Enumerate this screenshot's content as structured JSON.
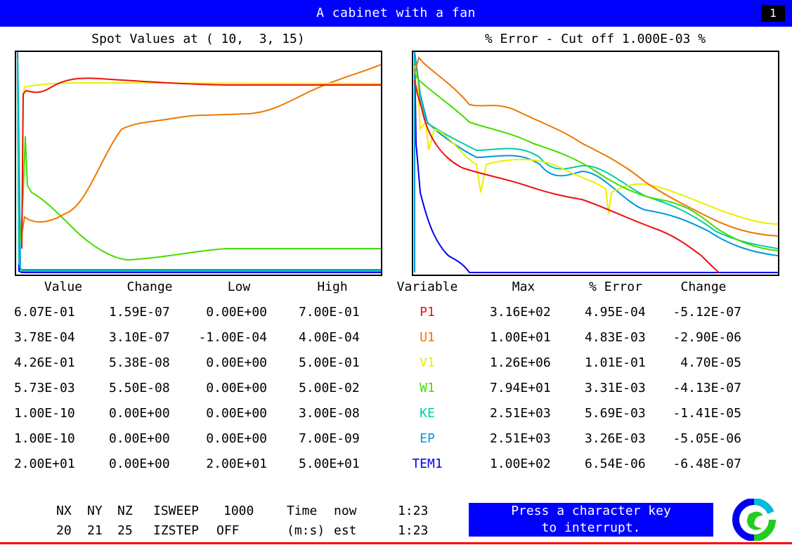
{
  "window": {
    "title": "A cabinet with a fan",
    "counter": "1"
  },
  "left_plot": {
    "title": "Spot Values at ( 10,  3, 15)"
  },
  "right_plot": {
    "title": "% Error - Cut off 1.000E-03 %"
  },
  "colors": {
    "P1": "#ee1010",
    "U1": "#ee7700",
    "V1": "#eeee00",
    "W1": "#44dd00",
    "KE": "#00ccaa",
    "EP": "#0099dd",
    "TEM1": "#0000ee"
  },
  "table": {
    "headers": {
      "value": "Value",
      "change": "Change",
      "low": "Low",
      "high": "High",
      "variable": "Variable",
      "max": "Max",
      "error": "% Error",
      "change2": "Change"
    },
    "rows": [
      {
        "value": "6.07E-01",
        "change": "1.59E-07",
        "low": "0.00E+00",
        "high": "7.00E-01",
        "variable": "P1",
        "max": "3.16E+02",
        "error": "4.95E-04",
        "change2": "-5.12E-07"
      },
      {
        "value": "3.78E-04",
        "change": "3.10E-07",
        "low": "-1.00E-04",
        "high": "4.00E-04",
        "variable": "U1",
        "max": "1.00E+01",
        "error": "4.83E-03",
        "change2": "-2.90E-06"
      },
      {
        "value": "4.26E-01",
        "change": "5.38E-08",
        "low": "0.00E+00",
        "high": "5.00E-01",
        "variable": "V1",
        "max": "1.26E+06",
        "error": "1.01E-01",
        "change2": "4.70E-05"
      },
      {
        "value": "5.73E-03",
        "change": "5.50E-08",
        "low": "0.00E+00",
        "high": "5.00E-02",
        "variable": "W1",
        "max": "7.94E+01",
        "error": "3.31E-03",
        "change2": "-4.13E-07"
      },
      {
        "value": "1.00E-10",
        "change": "0.00E+00",
        "low": "0.00E+00",
        "high": "3.00E-08",
        "variable": "KE",
        "max": "2.51E+03",
        "error": "5.69E-03",
        "change2": "-1.41E-05"
      },
      {
        "value": "1.00E-10",
        "change": "0.00E+00",
        "low": "0.00E+00",
        "high": "7.00E-09",
        "variable": "EP",
        "max": "2.51E+03",
        "error": "3.26E-03",
        "change2": "-5.05E-06"
      },
      {
        "value": "2.00E+01",
        "change": "0.00E+00",
        "low": "2.00E+01",
        "high": "5.00E+01",
        "variable": "TEM1",
        "max": "1.00E+02",
        "error": "6.54E-06",
        "change2": "-6.48E-07"
      }
    ]
  },
  "status": {
    "nx_label": "NX",
    "ny_label": "NY",
    "nz_label": "NZ",
    "nx": "20",
    "ny": "21",
    "nz": "25",
    "isweep_label": "ISWEEP",
    "isweep": "1000",
    "izstep_label": "IZSTEP",
    "izstep": "OFF",
    "time_label": "Time",
    "time_units": "(m:s)",
    "now_label": "now",
    "est_label": "est",
    "time_now": "1:23",
    "time_est": "1:23"
  },
  "interrupt": {
    "line1": "Press a character key",
    "line2": "to interrupt."
  }
}
